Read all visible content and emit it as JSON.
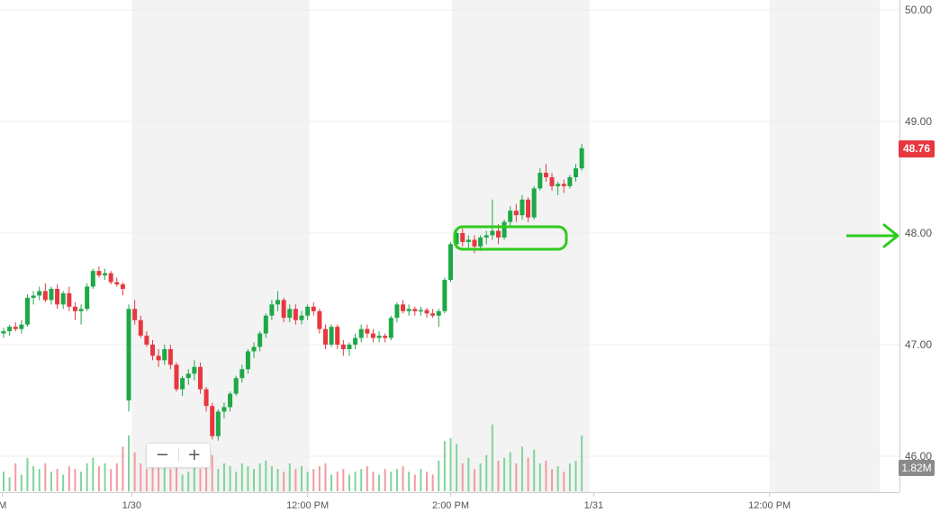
{
  "chart_data": {
    "type": "candlestick",
    "y_axis": {
      "ticks": [
        "50.00",
        "49.00",
        "48.00",
        "47.00",
        "46.00"
      ],
      "range": [
        45.97,
        50.03
      ]
    },
    "x_axis": {
      "ticks": [
        {
          "label": "M",
          "slot": -0.2
        },
        {
          "label": "1/30",
          "slot": 21.5
        },
        {
          "label": "12:00 PM",
          "slot": 51
        },
        {
          "label": "2:00 PM",
          "slot": 75
        },
        {
          "label": "1/31",
          "slot": 99
        },
        {
          "label": "12:00 PM",
          "slot": 128.5
        }
      ]
    },
    "shaded_ranges": [
      [
        21.5,
        51.3
      ],
      [
        75.2,
        98.3
      ],
      [
        128.5,
        147
      ]
    ],
    "last_price": "48.76",
    "last_volume": "1.82M",
    "colors": {
      "up": "#1ea847",
      "down": "#e8373f",
      "volume_up": "#7fd49a",
      "volume_down": "#f29aa0",
      "shade": "#f3f3f3",
      "grid": "#ececec",
      "annotation": "#2ecc1b"
    },
    "candles": [
      [
        47.1,
        47.15,
        47.06,
        47.12
      ],
      [
        47.12,
        47.18,
        47.08,
        47.16
      ],
      [
        47.16,
        47.2,
        47.12,
        47.14
      ],
      [
        47.14,
        47.22,
        47.1,
        47.18
      ],
      [
        47.18,
        47.45,
        47.16,
        47.42
      ],
      [
        47.42,
        47.48,
        47.36,
        47.44
      ],
      [
        47.44,
        47.52,
        47.4,
        47.48
      ],
      [
        47.48,
        47.55,
        47.38,
        47.4
      ],
      [
        47.4,
        47.52,
        47.36,
        47.5
      ],
      [
        47.5,
        47.54,
        47.32,
        47.36
      ],
      [
        47.36,
        47.48,
        47.32,
        47.46
      ],
      [
        47.46,
        47.52,
        47.3,
        47.34
      ],
      [
        47.34,
        47.38,
        47.22,
        47.3
      ],
      [
        47.3,
        47.36,
        47.18,
        47.32
      ],
      [
        47.32,
        47.55,
        47.3,
        47.52
      ],
      [
        47.52,
        47.68,
        47.5,
        47.66
      ],
      [
        47.66,
        47.7,
        47.6,
        47.62
      ],
      [
        47.62,
        47.68,
        47.58,
        47.64
      ],
      [
        47.64,
        47.66,
        47.54,
        47.56
      ],
      [
        47.56,
        47.6,
        47.52,
        47.54
      ],
      [
        47.54,
        47.56,
        47.44,
        47.5
      ],
      [
        46.5,
        47.36,
        46.4,
        47.32
      ],
      [
        47.32,
        47.4,
        47.18,
        47.22
      ],
      [
        47.22,
        47.26,
        47.06,
        47.08
      ],
      [
        47.08,
        47.12,
        46.98,
        47.0
      ],
      [
        47.0,
        47.04,
        46.86,
        46.9
      ],
      [
        46.9,
        46.96,
        46.8,
        46.86
      ],
      [
        46.86,
        47.0,
        46.82,
        46.96
      ],
      [
        46.96,
        47.0,
        46.78,
        46.82
      ],
      [
        46.82,
        46.84,
        46.58,
        46.6
      ],
      [
        46.6,
        46.72,
        46.54,
        46.7
      ],
      [
        46.7,
        46.78,
        46.64,
        46.74
      ],
      [
        46.74,
        46.86,
        46.68,
        46.8
      ],
      [
        46.8,
        46.84,
        46.56,
        46.6
      ],
      [
        46.6,
        46.62,
        46.4,
        46.45
      ],
      [
        46.45,
        46.48,
        46.15,
        46.18
      ],
      [
        46.18,
        46.42,
        46.14,
        46.4
      ],
      [
        46.4,
        46.48,
        46.34,
        46.44
      ],
      [
        46.44,
        46.58,
        46.4,
        46.56
      ],
      [
        46.56,
        46.72,
        46.54,
        46.7
      ],
      [
        46.7,
        46.82,
        46.66,
        46.78
      ],
      [
        46.78,
        46.96,
        46.74,
        46.94
      ],
      [
        46.94,
        47.02,
        46.88,
        46.98
      ],
      [
        46.98,
        47.12,
        46.94,
        47.1
      ],
      [
        47.1,
        47.28,
        47.06,
        47.26
      ],
      [
        47.26,
        47.4,
        47.22,
        47.36
      ],
      [
        47.36,
        47.48,
        47.3,
        47.4
      ],
      [
        47.4,
        47.42,
        47.2,
        47.24
      ],
      [
        47.24,
        47.36,
        47.2,
        47.32
      ],
      [
        47.32,
        47.36,
        47.18,
        47.22
      ],
      [
        47.22,
        47.3,
        47.18,
        47.26
      ],
      [
        47.26,
        47.36,
        47.22,
        47.34
      ],
      [
        47.34,
        47.38,
        47.26,
        47.3
      ],
      [
        47.3,
        47.32,
        47.1,
        47.14
      ],
      [
        47.14,
        47.18,
        46.96,
        47.0
      ],
      [
        47.0,
        47.18,
        46.98,
        47.16
      ],
      [
        47.16,
        47.18,
        46.96,
        47.0
      ],
      [
        47.0,
        47.04,
        46.9,
        46.96
      ],
      [
        46.96,
        47.02,
        46.9,
        47.0
      ],
      [
        47.0,
        47.1,
        46.96,
        47.06
      ],
      [
        47.06,
        47.18,
        47.02,
        47.14
      ],
      [
        47.14,
        47.18,
        47.06,
        47.1
      ],
      [
        47.1,
        47.14,
        47.02,
        47.06
      ],
      [
        47.06,
        47.12,
        47.02,
        47.08
      ],
      [
        47.08,
        47.1,
        47.02,
        47.06
      ],
      [
        47.06,
        47.26,
        47.04,
        47.24
      ],
      [
        47.24,
        47.38,
        47.2,
        47.36
      ],
      [
        47.36,
        47.4,
        47.28,
        47.3
      ],
      [
        47.3,
        47.36,
        47.26,
        47.32
      ],
      [
        47.32,
        47.34,
        47.26,
        47.3
      ],
      [
        47.3,
        47.34,
        47.26,
        47.31
      ],
      [
        47.31,
        47.33,
        47.24,
        47.28
      ],
      [
        47.28,
        47.32,
        47.24,
        47.26
      ],
      [
        47.26,
        47.32,
        47.16,
        47.3
      ],
      [
        47.3,
        47.6,
        47.28,
        47.58
      ],
      [
        47.58,
        47.92,
        47.56,
        47.9
      ],
      [
        47.9,
        48.02,
        47.86,
        48.0
      ],
      [
        48.0,
        48.04,
        47.88,
        47.92
      ],
      [
        47.92,
        47.98,
        47.86,
        47.94
      ],
      [
        47.94,
        47.98,
        47.82,
        47.88
      ],
      [
        47.88,
        47.98,
        47.84,
        47.96
      ],
      [
        47.96,
        48.02,
        47.9,
        47.98
      ],
      [
        47.98,
        48.3,
        47.94,
        48.02
      ],
      [
        48.02,
        48.08,
        47.9,
        47.96
      ],
      [
        47.96,
        48.12,
        47.94,
        48.1
      ],
      [
        48.1,
        48.24,
        48.06,
        48.2
      ],
      [
        48.2,
        48.26,
        48.1,
        48.16
      ],
      [
        48.16,
        48.34,
        48.12,
        48.3
      ],
      [
        48.3,
        48.32,
        48.1,
        48.14
      ],
      [
        48.14,
        48.42,
        48.12,
        48.4
      ],
      [
        48.4,
        48.58,
        48.38,
        48.54
      ],
      [
        48.54,
        48.62,
        48.46,
        48.5
      ],
      [
        48.5,
        48.54,
        48.38,
        48.42
      ],
      [
        48.42,
        48.46,
        48.34,
        48.44
      ],
      [
        48.44,
        48.48,
        48.36,
        48.42
      ],
      [
        48.42,
        48.52,
        48.4,
        48.5
      ],
      [
        48.5,
        48.62,
        48.46,
        48.58
      ],
      [
        48.58,
        48.8,
        48.56,
        48.76
      ]
    ],
    "volumes": [
      0.35,
      0.25,
      0.5,
      0.3,
      0.6,
      0.45,
      0.4,
      0.5,
      0.35,
      0.4,
      0.3,
      0.45,
      0.4,
      0.35,
      0.5,
      0.6,
      0.45,
      0.5,
      0.4,
      0.5,
      0.8,
      1.0,
      0.7,
      0.5,
      0.4,
      0.55,
      0.45,
      0.5,
      0.4,
      0.55,
      0.3,
      0.35,
      0.45,
      0.4,
      0.6,
      0.65,
      0.4,
      0.5,
      0.45,
      0.35,
      0.5,
      0.45,
      0.4,
      0.5,
      0.55,
      0.45,
      0.4,
      0.35,
      0.5,
      0.4,
      0.45,
      0.35,
      0.4,
      0.45,
      0.5,
      0.3,
      0.35,
      0.4,
      0.3,
      0.35,
      0.4,
      0.45,
      0.35,
      0.3,
      0.4,
      0.35,
      0.4,
      0.45,
      0.35,
      0.3,
      0.4,
      0.35,
      0.3,
      0.55,
      0.9,
      0.95,
      0.85,
      0.5,
      0.6,
      0.4,
      0.5,
      0.65,
      1.2,
      0.55,
      0.6,
      0.7,
      0.5,
      0.8,
      0.6,
      0.75,
      0.5,
      0.55,
      0.4,
      0.45,
      0.35,
      0.5,
      0.55,
      1.0
    ]
  }
}
